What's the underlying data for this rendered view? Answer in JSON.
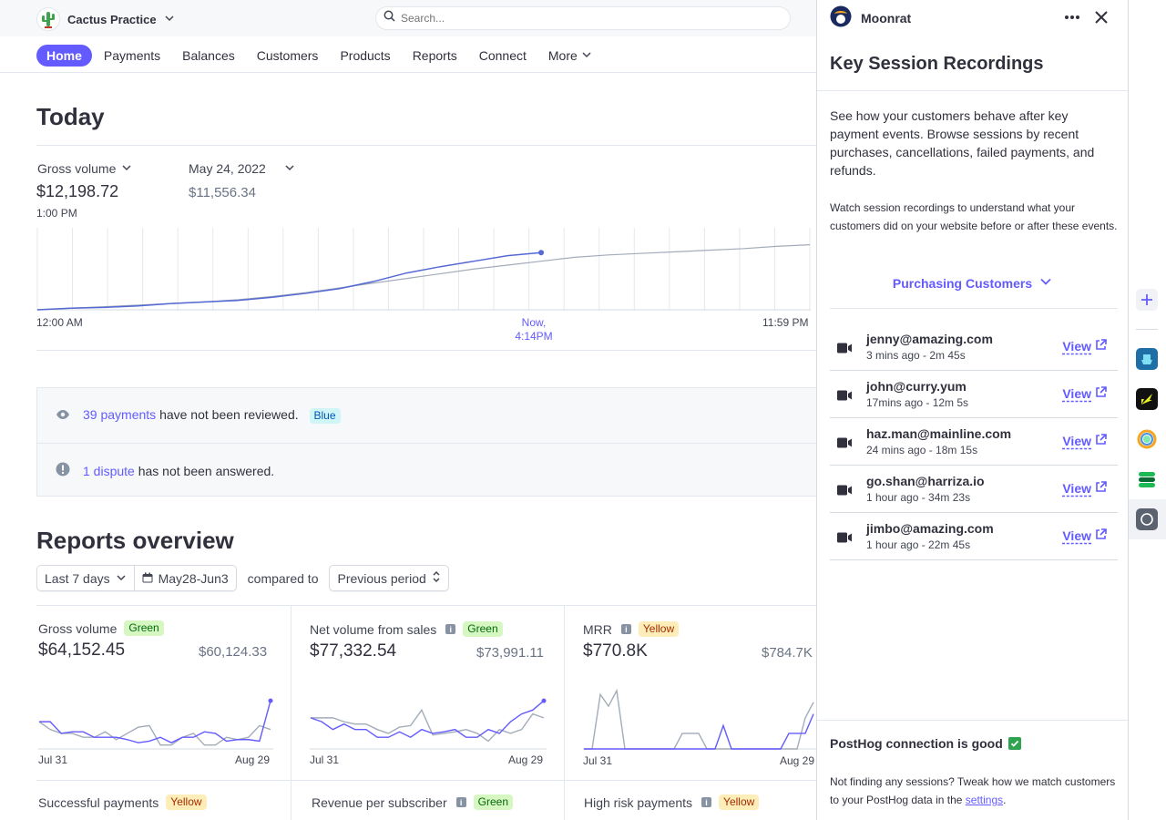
{
  "topbar": {
    "account_name": "Cactus Practice",
    "search_placeholder": "Search..."
  },
  "nav": {
    "items": [
      "Home",
      "Payments",
      "Balances",
      "Customers",
      "Products",
      "Reports",
      "Connect",
      "More"
    ],
    "active": "Home"
  },
  "today": {
    "title": "Today",
    "metric_label": "Gross volume",
    "metric_value": "$12,198.72",
    "metric_time": "1:00 PM",
    "compare_date": "May 24, 2022",
    "compare_value": "$11,556.34",
    "axis_start": "12:00 AM",
    "axis_now_1": "Now,",
    "axis_now_2": "4:14PM",
    "axis_end": "11:59 PM"
  },
  "today_chart": {
    "type": "line",
    "series": [
      {
        "values": [
          0,
          2,
          3,
          5,
          8,
          10,
          12,
          16,
          21,
          27,
          36,
          47,
          55,
          62,
          69,
          73
        ]
      },
      {
        "values": [
          0,
          2,
          4,
          6,
          8,
          10,
          13,
          17,
          22,
          28,
          34,
          40,
          46,
          52,
          57,
          62,
          67,
          70,
          72,
          74,
          76,
          78,
          81,
          83
        ]
      }
    ]
  },
  "alerts": {
    "payments_link": "39 payments",
    "payments_text": "have not been reviewed.",
    "payments_badge": "Blue",
    "dispute_link": "1 dispute",
    "dispute_text": "has not been answered."
  },
  "reports": {
    "title": "Reports overview",
    "range": "Last 7 days",
    "dates": "May28-Jun3",
    "compared_to": "compared to",
    "period": "Previous period"
  },
  "cards": [
    {
      "title": "Gross volume",
      "badge": "Green",
      "badge_color": "green",
      "info": false,
      "value": "$64,152.45",
      "compare": "$60,124.33",
      "x_start": "Jul 31",
      "x_end": "Aug 29"
    },
    {
      "title": "Net volume from sales",
      "badge": "Green",
      "badge_color": "green",
      "info": true,
      "value": "$77,332.54",
      "compare": "$73,991.11",
      "x_start": "Jul 31",
      "x_end": "Aug 29"
    },
    {
      "title": "MRR",
      "badge": "Yellow",
      "badge_color": "yellow",
      "info": true,
      "value": "$770.8K",
      "compare": "$784.7K",
      "x_start": "Jul 31",
      "x_end": "Aug 29"
    },
    {
      "title": "Successful payments",
      "badge": "Yellow",
      "badge_color": "yellow",
      "info": false
    },
    {
      "title": "Revenue per subscriber",
      "badge": "Green",
      "badge_color": "green",
      "info": true
    },
    {
      "title": "High risk payments",
      "badge": "Yellow",
      "badge_color": "yellow",
      "info": true
    }
  ],
  "sparklines": [
    {
      "current": [
        35,
        35,
        20,
        22,
        22,
        15,
        15,
        15,
        12,
        8,
        10,
        15,
        8,
        15,
        15,
        22,
        20,
        10,
        12,
        12,
        10,
        62
      ],
      "previous": [
        35,
        25,
        20,
        20,
        15,
        15,
        22,
        12,
        20,
        28,
        30,
        5,
        5,
        15,
        20,
        5,
        5,
        15,
        12,
        15,
        30,
        25
      ]
    },
    {
      "current": [
        40,
        35,
        25,
        32,
        25,
        25,
        15,
        15,
        22,
        15,
        25,
        20,
        22,
        25,
        15,
        15,
        25,
        20,
        35,
        45,
        50,
        62
      ],
      "previous": [
        40,
        40,
        40,
        35,
        32,
        32,
        25,
        20,
        28,
        30,
        50,
        18,
        20,
        22,
        25,
        20,
        10,
        25,
        20,
        25,
        45,
        40
      ]
    },
    {
      "current": [
        0,
        0,
        0,
        0,
        0,
        0,
        0,
        0,
        0,
        0,
        0,
        0,
        0,
        0,
        0,
        0,
        0,
        30,
        0,
        0,
        0,
        0,
        0,
        0,
        0,
        20,
        20,
        20,
        45
      ],
      "previous": [
        0,
        0,
        70,
        55,
        75,
        0,
        0,
        0,
        0,
        0,
        0,
        0,
        20,
        20,
        20,
        0,
        0,
        0,
        0,
        0,
        0,
        0,
        0,
        0,
        0,
        0,
        0,
        40,
        60
      ]
    }
  ],
  "panel": {
    "app_name": "Moonrat",
    "title": "Key Session Recordings",
    "desc": "See how your customers behave after key payment events. Browse sessions by recent purchases, cancellations, failed payments, and refunds.",
    "desc2": "Watch session recordings to understand what your customers did on your website before or after these events.",
    "segment": "Purchasing Customers",
    "view_label": "View",
    "recordings": [
      {
        "email": "jenny@amazing.com",
        "meta": "3 mins ago - 2m 45s"
      },
      {
        "email": "john@curry.yum",
        "meta": "17mins ago - 12m 5s"
      },
      {
        "email": "haz.man@mainline.com",
        "meta": "24 mins ago - 18m 15s"
      },
      {
        "email": "go.shan@harriza.io",
        "meta": "1 hour ago - 34m 23s"
      },
      {
        "email": "jimbo@amazing.com",
        "meta": "1 hour ago - 22m 45s"
      }
    ],
    "connection": "PostHog connection is good",
    "foot_text": "Not finding any sessions? Tweak how we match customers to your PostHog data in the",
    "foot_link": "settings",
    "foot_end": "."
  },
  "colors": {
    "accent": "#635bff",
    "chart_current": "#5469d4",
    "chart_previous": "#a3acb9"
  }
}
